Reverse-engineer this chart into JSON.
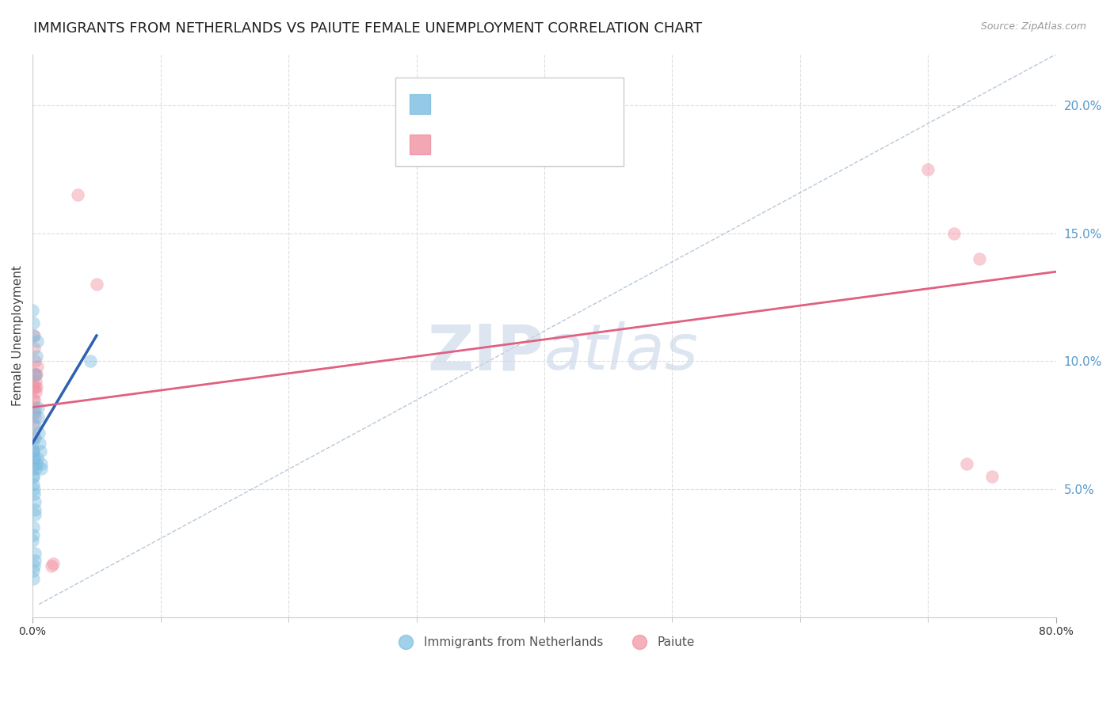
{
  "title": "IMMIGRANTS FROM NETHERLANDS VS PAIUTE FEMALE UNEMPLOYMENT CORRELATION CHART",
  "source": "Source: ZipAtlas.com",
  "ylabel": "Female Unemployment",
  "blue_scatter": [
    [
      0.05,
      6.5
    ],
    [
      0.1,
      6.2
    ],
    [
      0.15,
      7.0
    ],
    [
      0.18,
      7.5
    ],
    [
      0.2,
      8.0
    ],
    [
      0.25,
      9.5
    ],
    [
      0.3,
      10.2
    ],
    [
      0.35,
      10.8
    ],
    [
      0.4,
      8.2
    ],
    [
      0.45,
      7.8
    ],
    [
      0.5,
      7.2
    ],
    [
      0.55,
      6.8
    ],
    [
      0.6,
      6.5
    ],
    [
      0.65,
      6.0
    ],
    [
      0.7,
      5.8
    ],
    [
      0.05,
      5.5
    ],
    [
      0.08,
      5.2
    ],
    [
      0.1,
      5.0
    ],
    [
      0.12,
      4.8
    ],
    [
      0.15,
      4.5
    ],
    [
      0.18,
      4.2
    ],
    [
      0.2,
      4.0
    ],
    [
      0.25,
      5.8
    ],
    [
      0.3,
      6.0
    ],
    [
      0.35,
      6.2
    ],
    [
      0.02,
      6.8
    ],
    [
      0.03,
      6.5
    ],
    [
      0.04,
      6.2
    ],
    [
      0.02,
      5.8
    ],
    [
      0.03,
      5.5
    ],
    [
      0.05,
      1.5
    ],
    [
      0.08,
      1.8
    ],
    [
      0.1,
      2.0
    ],
    [
      0.15,
      2.5
    ],
    [
      0.18,
      2.2
    ],
    [
      0.02,
      3.0
    ],
    [
      0.03,
      3.2
    ],
    [
      0.04,
      3.5
    ],
    [
      0.02,
      12.0
    ],
    [
      0.03,
      11.5
    ],
    [
      0.04,
      11.0
    ],
    [
      4.5,
      10.0
    ]
  ],
  "pink_scatter": [
    [
      0.05,
      8.5
    ],
    [
      0.08,
      9.0
    ],
    [
      0.1,
      10.5
    ],
    [
      0.12,
      11.0
    ],
    [
      0.15,
      10.0
    ],
    [
      0.18,
      9.5
    ],
    [
      0.2,
      9.0
    ],
    [
      0.25,
      9.2
    ],
    [
      0.3,
      9.5
    ],
    [
      0.35,
      9.8
    ],
    [
      0.05,
      7.5
    ],
    [
      0.08,
      8.0
    ],
    [
      0.1,
      7.0
    ],
    [
      0.12,
      8.5
    ],
    [
      0.15,
      8.2
    ],
    [
      0.18,
      7.8
    ],
    [
      0.2,
      9.5
    ],
    [
      0.25,
      8.8
    ],
    [
      0.3,
      9.0
    ],
    [
      3.5,
      16.5
    ],
    [
      5.0,
      13.0
    ],
    [
      1.5,
      2.0
    ],
    [
      1.6,
      2.1
    ],
    [
      70.0,
      17.5
    ],
    [
      72.0,
      15.0
    ],
    [
      74.0,
      14.0
    ],
    [
      73.0,
      6.0
    ],
    [
      75.0,
      5.5
    ],
    [
      0.05,
      6.5
    ],
    [
      0.08,
      6.0
    ]
  ],
  "blue_line": {
    "x": [
      0.0,
      5.0
    ],
    "y": [
      6.8,
      11.0
    ]
  },
  "pink_line": {
    "x": [
      0.0,
      80.0
    ],
    "y": [
      8.2,
      13.5
    ]
  },
  "gray_diag_line": {
    "x": [
      0.5,
      80.0
    ],
    "y": [
      0.5,
      22.0
    ]
  },
  "xlim": [
    0,
    80
  ],
  "ylim": [
    0,
    22
  ],
  "yticks": [
    5.0,
    10.0,
    15.0,
    20.0
  ],
  "background_color": "#ffffff",
  "grid_color": "#dddddd",
  "scatter_size": 130,
  "scatter_alpha": 0.45,
  "title_fontsize": 13,
  "axis_label_fontsize": 11,
  "tick_fontsize": 10,
  "blue_color": "#7bbde0",
  "pink_color": "#f090a0",
  "blue_line_color": "#3060b0",
  "pink_line_color": "#e06080",
  "legend_R_color_blue": "#4472c4",
  "legend_R_color_pink": "#e06080",
  "legend_N_color": "#e05050",
  "watermark": "ZIPatlas"
}
